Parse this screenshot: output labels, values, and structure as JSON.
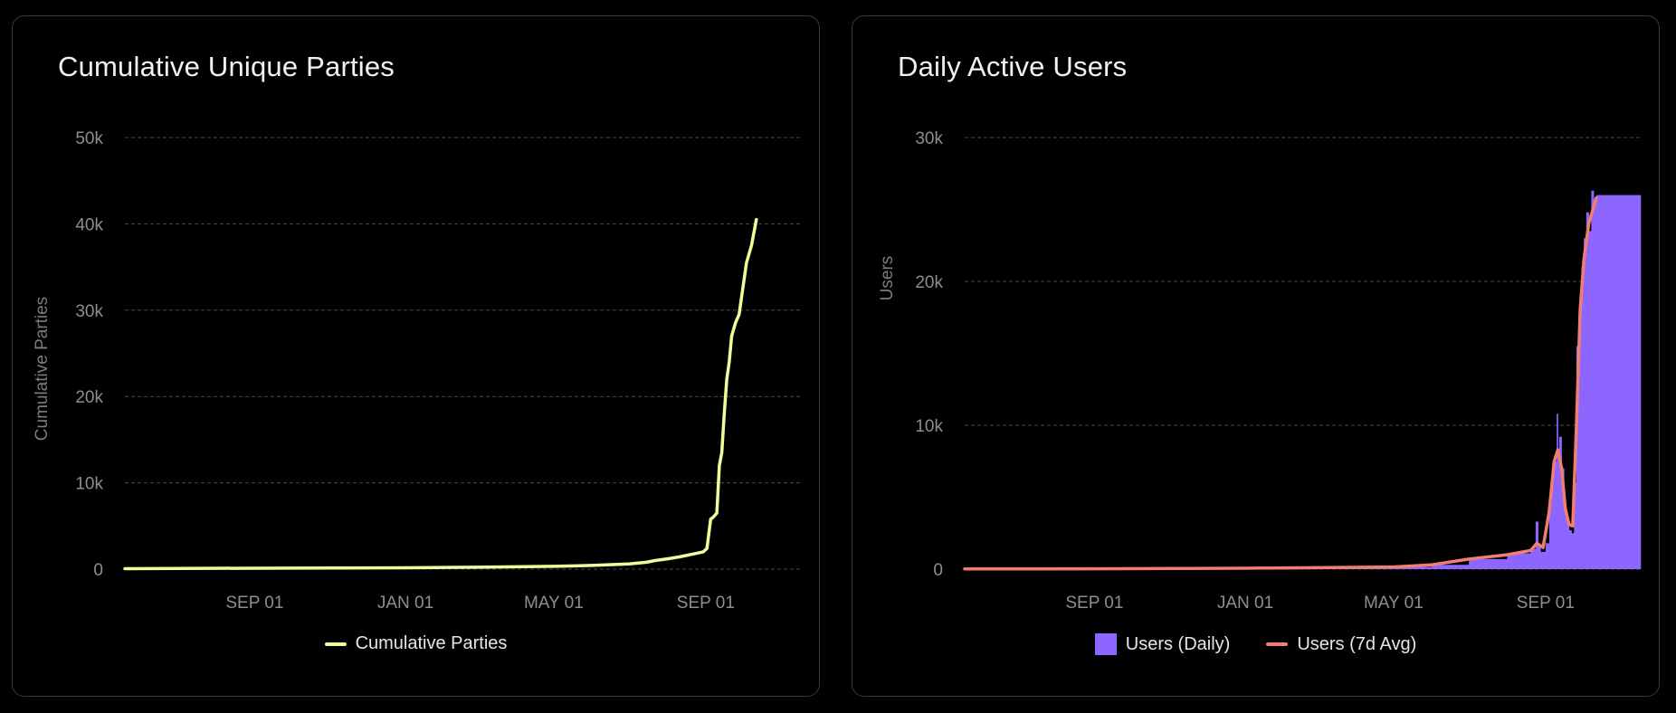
{
  "charts": [
    {
      "title": "Cumulative Unique Parties",
      "chart_data": {
        "type": "line",
        "title": "Cumulative Unique Parties",
        "ylabel": "Cumulative Parties",
        "xlabel": "",
        "ylim": [
          0,
          50000
        ],
        "yticks": [
          0,
          10000,
          20000,
          30000,
          40000,
          50000
        ],
        "ytick_labels": [
          "0",
          "10k",
          "20k",
          "30k",
          "40k",
          "50k"
        ],
        "x_range": [
          "2021-05-19",
          "2022-11-17"
        ],
        "xticks": [
          "2021-09-01",
          "2022-01-01",
          "2022-05-01",
          "2022-09-01"
        ],
        "xtick_labels": [
          "SEP 01",
          "JAN 01",
          "MAY 01",
          "SEP 01"
        ],
        "grid": true,
        "legend": "bottom-center",
        "series": [
          {
            "name": "Cumulative Parties",
            "color": "#eefe9a",
            "points": [
              [
                "2021-05-19",
                50
              ],
              [
                "2021-07-01",
                80
              ],
              [
                "2021-09-01",
                100
              ],
              [
                "2021-11-01",
                130
              ],
              [
                "2022-01-01",
                160
              ],
              [
                "2022-03-01",
                220
              ],
              [
                "2022-05-01",
                320
              ],
              [
                "2022-06-01",
                430
              ],
              [
                "2022-07-01",
                600
              ],
              [
                "2022-07-15",
                800
              ],
              [
                "2022-07-22",
                1000
              ],
              [
                "2022-08-01",
                1200
              ],
              [
                "2022-08-10",
                1400
              ],
              [
                "2022-08-20",
                1700
              ],
              [
                "2022-08-30",
                2000
              ],
              [
                "2022-09-02",
                2400
              ],
              [
                "2022-09-05",
                5800
              ],
              [
                "2022-09-07",
                6000
              ],
              [
                "2022-09-10",
                6500
              ],
              [
                "2022-09-12",
                12000
              ],
              [
                "2022-09-14",
                13500
              ],
              [
                "2022-09-16",
                18000
              ],
              [
                "2022-09-18",
                22000
              ],
              [
                "2022-09-20",
                24000
              ],
              [
                "2022-09-22",
                27000
              ],
              [
                "2022-09-25",
                28500
              ],
              [
                "2022-09-28",
                29500
              ],
              [
                "2022-10-01",
                32500
              ],
              [
                "2022-10-04",
                35500
              ],
              [
                "2022-10-08",
                37500
              ],
              [
                "2022-10-12",
                40500
              ]
            ]
          }
        ]
      }
    },
    {
      "title": "Daily Active Users",
      "chart_data": {
        "type": "bar",
        "title": "Daily Active Users",
        "ylabel": "Users",
        "xlabel": "",
        "ylim": [
          0,
          30000
        ],
        "yticks": [
          0,
          10000,
          20000,
          30000
        ],
        "ytick_labels": [
          "0",
          "10k",
          "20k",
          "30k"
        ],
        "x_range": [
          "2021-05-19",
          "2022-11-17"
        ],
        "xticks": [
          "2021-09-01",
          "2022-01-01",
          "2022-05-01",
          "2022-09-01"
        ],
        "xtick_labels": [
          "SEP 01",
          "JAN 01",
          "MAY 01",
          "SEP 01"
        ],
        "grid": true,
        "legend": "bottom-center",
        "series": [
          {
            "name": "Users (Daily)",
            "kind": "bar",
            "color": "#8c66ff",
            "points": [
              [
                "2021-05-19",
                10
              ],
              [
                "2021-09-01",
                25
              ],
              [
                "2022-01-01",
                60
              ],
              [
                "2022-05-01",
                150
              ],
              [
                "2022-06-01",
                300
              ],
              [
                "2022-07-01",
                700
              ],
              [
                "2022-08-01",
                1100
              ],
              [
                "2022-08-20",
                1400
              ],
              [
                "2022-08-24",
                3300
              ],
              [
                "2022-08-26",
                1600
              ],
              [
                "2022-08-28",
                1200
              ],
              [
                "2022-09-01",
                1800
              ],
              [
                "2022-09-04",
                4500
              ],
              [
                "2022-09-06",
                6500
              ],
              [
                "2022-09-08",
                7500
              ],
              [
                "2022-09-10",
                10800
              ],
              [
                "2022-09-11",
                8200
              ],
              [
                "2022-09-12",
                9200
              ],
              [
                "2022-09-14",
                7000
              ],
              [
                "2022-09-16",
                4200
              ],
              [
                "2022-09-18",
                3200
              ],
              [
                "2022-09-20",
                2700
              ],
              [
                "2022-09-22",
                2500
              ],
              [
                "2022-09-24",
                6000
              ],
              [
                "2022-09-26",
                15500
              ],
              [
                "2022-09-28",
                18000
              ],
              [
                "2022-09-30",
                21000
              ],
              [
                "2022-10-02",
                23000
              ],
              [
                "2022-10-04",
                24800
              ],
              [
                "2022-10-06",
                23500
              ],
              [
                "2022-10-08",
                26300
              ],
              [
                "2022-10-10",
                25500
              ],
              [
                "2022-10-12",
                26000
              ]
            ]
          },
          {
            "name": "Users (7d Avg)",
            "kind": "line",
            "color": "#f07f72",
            "points": [
              [
                "2021-05-19",
                10
              ],
              [
                "2021-09-01",
                25
              ],
              [
                "2022-01-01",
                60
              ],
              [
                "2022-05-01",
                150
              ],
              [
                "2022-06-01",
                300
              ],
              [
                "2022-07-01",
                700
              ],
              [
                "2022-08-01",
                1000
              ],
              [
                "2022-08-20",
                1300
              ],
              [
                "2022-08-25",
                1800
              ],
              [
                "2022-08-30",
                1500
              ],
              [
                "2022-09-04",
                4000
              ],
              [
                "2022-09-08",
                7500
              ],
              [
                "2022-09-11",
                8300
              ],
              [
                "2022-09-14",
                7000
              ],
              [
                "2022-09-17",
                4200
              ],
              [
                "2022-09-20",
                3100
              ],
              [
                "2022-09-23",
                3000
              ],
              [
                "2022-09-26",
                10000
              ],
              [
                "2022-09-29",
                18000
              ],
              [
                "2022-10-02",
                21500
              ],
              [
                "2022-10-06",
                24000
              ],
              [
                "2022-10-12",
                25800
              ]
            ]
          }
        ]
      }
    }
  ]
}
